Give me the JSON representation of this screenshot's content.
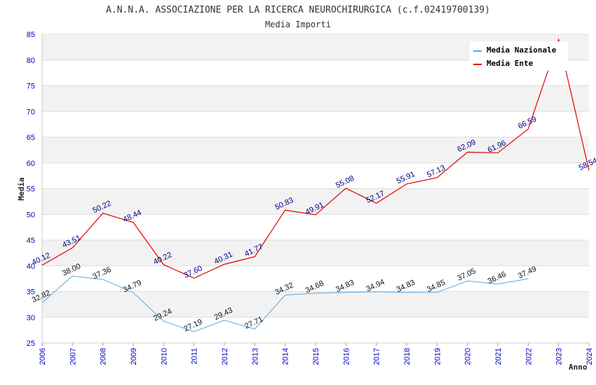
{
  "chart_data": {
    "type": "line",
    "title": "A.N.N.A. ASSOCIAZIONE PER LA RICERCA NEUROCHIRURGICA (c.f.02419700139)",
    "subtitle": "Media Importi",
    "xlabel": "Anno",
    "ylabel": "Media",
    "ylim": [
      25,
      85
    ],
    "yticks": [
      25,
      30,
      35,
      40,
      45,
      50,
      55,
      60,
      65,
      70,
      75,
      80,
      85
    ],
    "x": [
      "2006",
      "2007",
      "2008",
      "2009",
      "2010",
      "2011",
      "2012",
      "2013",
      "2014",
      "2015",
      "2016",
      "2017",
      "2018",
      "2019",
      "2020",
      "2021",
      "2022",
      "2023",
      "2024"
    ],
    "series": [
      {
        "name": "Media Nazionale",
        "color": "#5aa7e0",
        "values": [
          32.82,
          38.0,
          37.36,
          34.79,
          29.24,
          27.19,
          29.43,
          27.71,
          34.32,
          34.68,
          34.83,
          34.94,
          34.83,
          34.85,
          37.05,
          36.46,
          37.49,
          null,
          null
        ],
        "labels": [
          "32.82",
          "38.00",
          "37.36",
          "34.79",
          "29.24",
          "27.19",
          "29.43",
          "27.71",
          "34.32",
          "34.68",
          "34.83",
          "34.94",
          "34.83",
          "34.85",
          "37.05",
          "36.46",
          "37.49",
          "",
          ""
        ]
      },
      {
        "name": "Media Ente",
        "color": "#e00000",
        "values": [
          40.12,
          43.51,
          50.22,
          48.44,
          40.22,
          37.6,
          40.31,
          41.77,
          50.83,
          49.91,
          55.08,
          52.17,
          55.91,
          57.13,
          62.09,
          61.96,
          66.59,
          84.0,
          58.54
        ],
        "labels": [
          "40.12",
          "43.51",
          "50.22",
          "48.44",
          "40.22",
          "37.60",
          "40.31",
          "41.77",
          "50.83",
          "49.91",
          "55.08",
          "52.17",
          "55.91",
          "57.13",
          "62.09",
          "61.96",
          "66.59",
          "",
          "58.54"
        ]
      }
    ],
    "legend": "top-right",
    "grid": true,
    "band_colors": [
      "#f2f2f2",
      "#ffffff"
    ]
  }
}
